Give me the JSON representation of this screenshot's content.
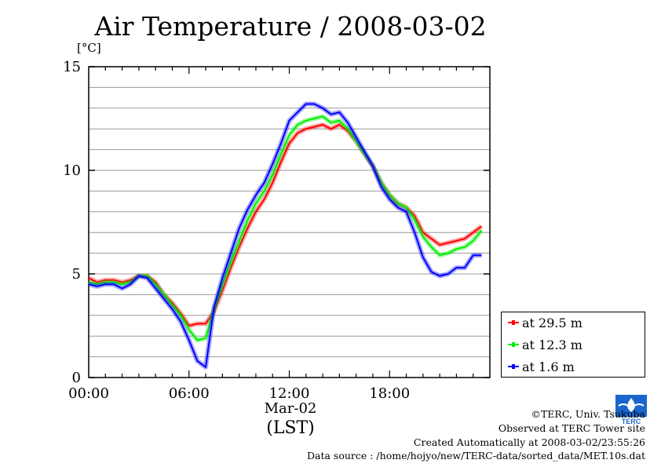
{
  "chart_data": {
    "type": "line",
    "title": "Air Temperature / 2008-03-02",
    "ylabel": "[°C]",
    "ylim": [
      0,
      15
    ],
    "y_ticks": [
      "0",
      "5",
      "10",
      "15"
    ],
    "xlim": [
      0,
      24
    ],
    "x_ticks": [
      "00:00",
      "06:00",
      "12:00",
      "18:00"
    ],
    "x_tick_hours": [
      0,
      6,
      12,
      18
    ],
    "xlabel_date": "Mar-02",
    "xlabel_tz": "(LST)",
    "grid": "horizontal",
    "legend_position": "bottom-right outside",
    "x": [
      0,
      0.5,
      1,
      1.5,
      2,
      2.5,
      3,
      3.5,
      4,
      4.5,
      5,
      5.5,
      6,
      6.5,
      7,
      7.5,
      8,
      8.5,
      9,
      9.5,
      10,
      10.5,
      11,
      11.5,
      12,
      12.5,
      13,
      13.5,
      14,
      14.5,
      15,
      15.5,
      16,
      16.5,
      17,
      17.5,
      18,
      18.5,
      19,
      19.5,
      20,
      20.5,
      21,
      21.5,
      22,
      22.5,
      23,
      23.5
    ],
    "series": [
      {
        "name": "at 29.5 m",
        "color": "#ff0000",
        "values": [
          4.8,
          4.6,
          4.7,
          4.7,
          4.6,
          4.7,
          4.9,
          4.9,
          4.6,
          4.0,
          3.6,
          3.1,
          2.5,
          2.6,
          2.6,
          3.2,
          4.2,
          5.3,
          6.3,
          7.2,
          8.0,
          8.6,
          9.4,
          10.4,
          11.3,
          11.8,
          12.0,
          12.1,
          12.2,
          12.0,
          12.2,
          11.9,
          11.4,
          10.8,
          10.2,
          9.4,
          8.8,
          8.4,
          8.2,
          7.8,
          7.0,
          6.7,
          6.4,
          6.5,
          6.6,
          6.7,
          7.0,
          7.3
        ]
      },
      {
        "name": "at 12.3 m",
        "color": "#00ee00",
        "values": [
          4.6,
          4.5,
          4.6,
          4.6,
          4.5,
          4.6,
          4.9,
          4.9,
          4.5,
          4.0,
          3.5,
          3.0,
          2.3,
          1.8,
          1.9,
          3.3,
          4.5,
          5.6,
          6.6,
          7.6,
          8.4,
          9.0,
          9.8,
          10.8,
          11.7,
          12.2,
          12.4,
          12.5,
          12.6,
          12.3,
          12.4,
          12.0,
          11.4,
          10.8,
          10.2,
          9.4,
          8.8,
          8.4,
          8.2,
          7.6,
          6.8,
          6.3,
          5.9,
          6.0,
          6.2,
          6.3,
          6.6,
          7.1
        ]
      },
      {
        "name": "at 1.6 m",
        "color": "#0000ff",
        "values": [
          4.5,
          4.4,
          4.5,
          4.5,
          4.3,
          4.5,
          4.9,
          4.8,
          4.3,
          3.8,
          3.3,
          2.7,
          1.8,
          0.8,
          0.5,
          3.4,
          4.8,
          6.0,
          7.2,
          8.1,
          8.8,
          9.4,
          10.3,
          11.3,
          12.4,
          12.8,
          13.2,
          13.2,
          13.0,
          12.7,
          12.8,
          12.3,
          11.6,
          10.9,
          10.2,
          9.2,
          8.6,
          8.2,
          8.0,
          7.0,
          5.8,
          5.1,
          4.9,
          5.0,
          5.3,
          5.3,
          5.9,
          5.9
        ]
      }
    ]
  },
  "footer": {
    "copyright": "©TERC, Univ. Tsukuba",
    "observed": "Observed at TERC Tower site",
    "created": "Created Automatically at 2008-03-02/23:55:26",
    "source": "Data source : /home/hojyo/new/TERC-data/sorted_data/MET.10s.dat"
  },
  "logo": {
    "label": "TERC",
    "color": "#1a66cc"
  }
}
